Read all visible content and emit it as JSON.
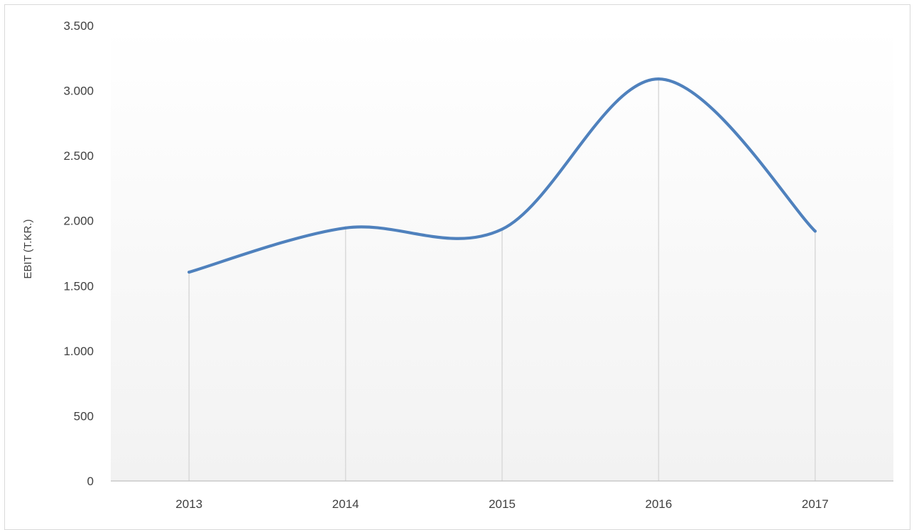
{
  "chart_data": {
    "type": "line",
    "smooth": true,
    "title": "",
    "xlabel": "",
    "ylabel": "EBIT (T.KR.)",
    "categories": [
      "2013",
      "2014",
      "2015",
      "2016",
      "2017"
    ],
    "series": [
      {
        "values": [
          1605,
          1945,
          1935,
          3090,
          1920
        ]
      }
    ],
    "ylim": [
      0,
      3500
    ],
    "ytick_values": [
      0,
      500,
      1000,
      1500,
      2000,
      2500,
      3000,
      3500
    ],
    "ytick_labels": [
      "0",
      "500",
      "1.000",
      "1.500",
      "2.000",
      "2.500",
      "3.000",
      "3.500"
    ],
    "grid": false,
    "drop_lines": true,
    "legend": "none",
    "colors": {
      "line": "#4f81bd",
      "drop_line": "#d9d9d9",
      "axis": "#bfbfbf",
      "plot_bg_top": "#ffffff",
      "plot_bg_bottom": "#f2f2f2",
      "frame": "#d9d9d9"
    }
  }
}
